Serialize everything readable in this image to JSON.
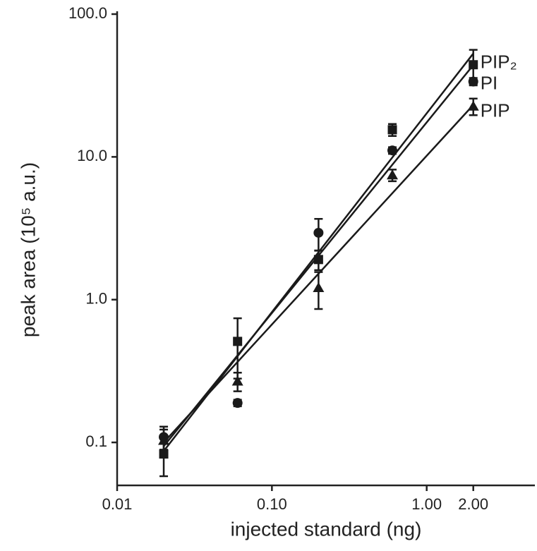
{
  "chart_data": {
    "type": "scatter",
    "x_label": "injected standard (ng)",
    "y_label": "peak area (10⁵ a.u.)",
    "log_x": true,
    "log_y": true,
    "xlim": [
      0.01,
      5
    ],
    "ylim": [
      0.05,
      100
    ],
    "xticks": [
      {
        "value": 0.01,
        "label": "0.01"
      },
      {
        "value": 0.1,
        "label": "0.10"
      },
      {
        "value": 1,
        "label": "1.00"
      },
      {
        "value": 2,
        "label": "2.00"
      }
    ],
    "yticks": [
      0.1,
      {
        "value": 1,
        "label": "1.0"
      },
      {
        "value": 10,
        "label": "10.0"
      },
      {
        "value": 100,
        "label": "100.0"
      }
    ],
    "x": [
      0.02,
      0.06,
      0.2,
      0.6,
      2
    ],
    "fit_x": [
      0.02,
      2
    ],
    "series": [
      {
        "name": "PIP₂",
        "color": "#1a1a1a",
        "marker": "square",
        "values": [
          0.083,
          0.51,
          1.91,
          15.5,
          44.2
        ],
        "errors": [
          0.025,
          0.23,
          0.3,
          1.5,
          12
        ],
        "fit": [
          0.087,
          53
        ]
      },
      {
        "name": "PI",
        "color": "#1a1a1a",
        "marker": "circle",
        "values": [
          0.109,
          0.189,
          2.94,
          11.1,
          33.7
        ],
        "errors": [
          0.02,
          0.01,
          0.74,
          0.6,
          2
        ],
        "fit": [
          0.094,
          44
        ]
      },
      {
        "name": "PIP",
        "color": "#1a1a1a",
        "marker": "triangle",
        "values": [
          0.103,
          0.268,
          1.21,
          7.45,
          22.6
        ],
        "errors": [
          0.02,
          0.04,
          0.35,
          0.7,
          3
        ],
        "fit": [
          0.1,
          23.1
        ]
      }
    ]
  }
}
